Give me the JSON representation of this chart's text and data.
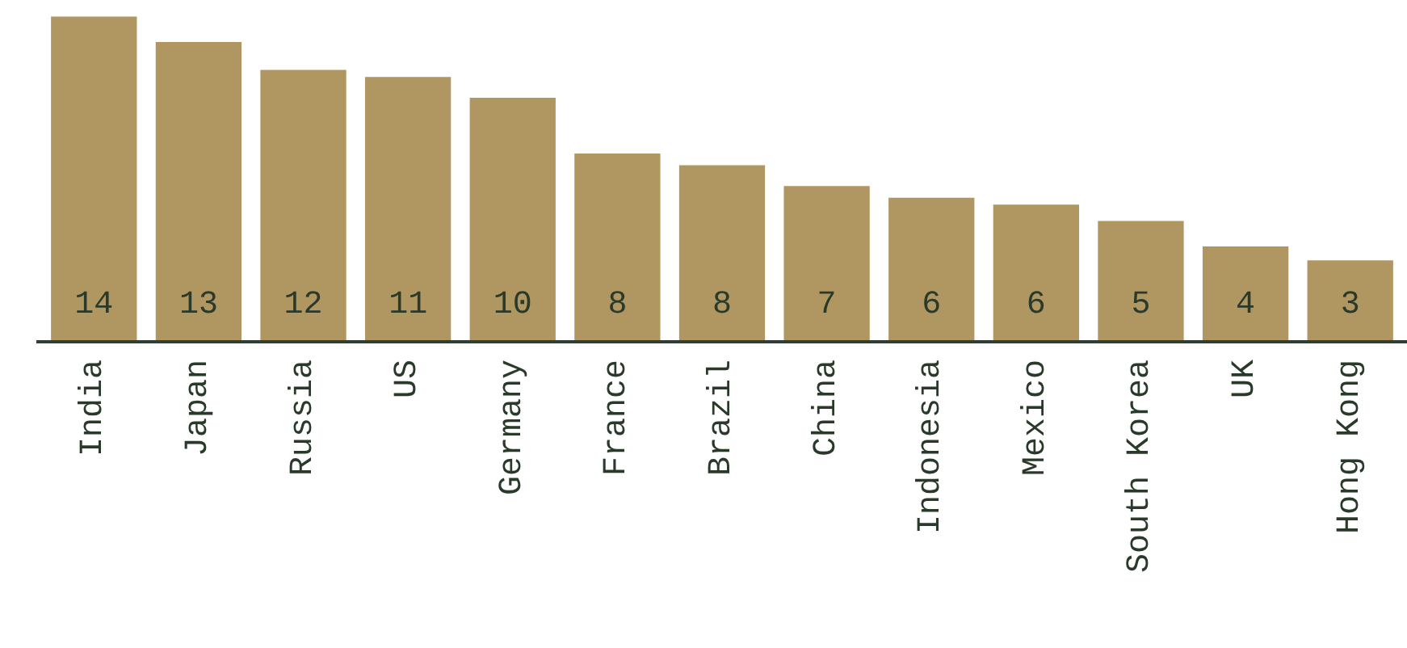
{
  "chart_data": {
    "type": "bar",
    "categories": [
      "India",
      "Japan",
      "Russia",
      "US",
      "Germany",
      "France",
      "Brazil",
      "China",
      "Indonesia",
      "Mexico",
      "South Korea",
      "UK",
      "Hong Kong"
    ],
    "values": [
      14,
      12.9,
      11.7,
      11.4,
      10.5,
      8.1,
      7.6,
      6.7,
      6.2,
      5.9,
      5.2,
      4.1,
      3.5
    ],
    "value_labels": [
      "14",
      "13",
      "12",
      "11",
      "10",
      "8",
      "8",
      "7",
      "6",
      "6",
      "5",
      "4",
      "3"
    ],
    "color": "#b09661"
  }
}
